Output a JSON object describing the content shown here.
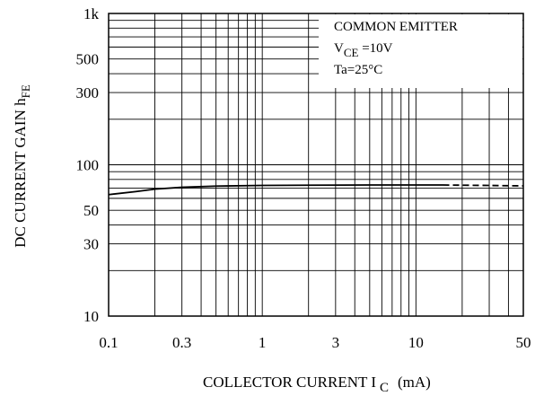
{
  "chart_data": {
    "type": "line",
    "x_scale": "log",
    "y_scale": "log",
    "xlim": [
      0.1,
      50
    ],
    "ylim": [
      10,
      1000
    ],
    "grid": true,
    "x_ticks": [
      {
        "value": 0.1,
        "label": "0.1"
      },
      {
        "value": 0.3,
        "label": "0.3"
      },
      {
        "value": 1,
        "label": "1"
      },
      {
        "value": 3,
        "label": "3"
      },
      {
        "value": 10,
        "label": "10"
      },
      {
        "value": 50,
        "label": "50"
      }
    ],
    "y_ticks": [
      {
        "value": 10,
        "label": "10"
      },
      {
        "value": 30,
        "label": "30"
      },
      {
        "value": 50,
        "label": "50"
      },
      {
        "value": 100,
        "label": "100"
      },
      {
        "value": 300,
        "label": "300"
      },
      {
        "value": 500,
        "label": "500"
      },
      {
        "value": 1000,
        "label": "1k"
      }
    ],
    "ylabel_main": "DC CURRENT GAIN h",
    "ylabel_sub": "FE",
    "xlabel_main": "COLLECTOR CURRENT I",
    "xlabel_sub": "C",
    "xlabel_unit": "(mA)",
    "annotation": {
      "line1": "COMMON EMITTER",
      "line2_main": "V",
      "line2_sub": "CE",
      "line2_value": " =10V",
      "line3": "Ta=25°C"
    },
    "series": [
      {
        "style": "solid",
        "x": [
          0.1,
          0.15,
          0.2,
          0.3,
          0.5,
          1,
          2,
          5,
          10,
          15
        ],
        "y": [
          63.5,
          66.5,
          69,
          71,
          72.3,
          73,
          73.3,
          73.5,
          73.5,
          73.5
        ]
      },
      {
        "style": "dashed",
        "x": [
          15,
          20,
          30,
          50
        ],
        "y": [
          73.5,
          73.3,
          73.0,
          72.5
        ]
      }
    ]
  }
}
